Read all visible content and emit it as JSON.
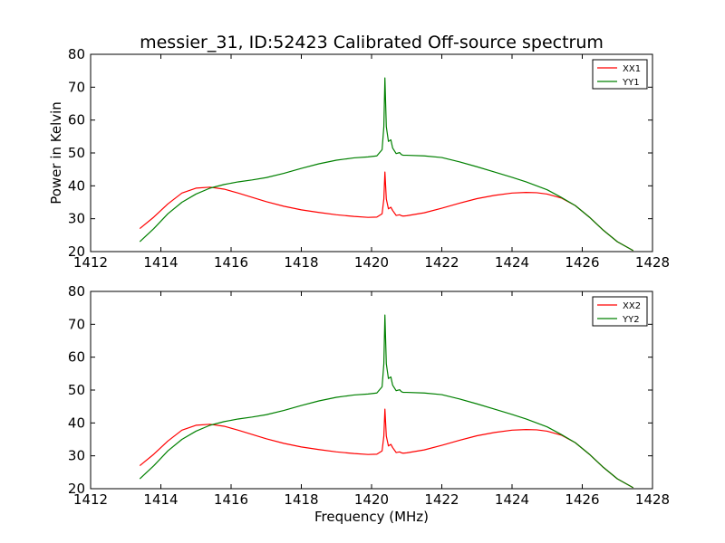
{
  "figure": {
    "title": "messier_31, ID:52423 Calibrated Off-source spectrum",
    "xlabel": "Frequency (MHz)",
    "ylabel": "Power in Kelvin"
  },
  "chart_data": [
    {
      "type": "line",
      "title": "messier_31, ID:52423 Calibrated Off-source spectrum",
      "xlabel": "",
      "ylabel": "Power in Kelvin",
      "xlim": [
        1412,
        1428
      ],
      "ylim": [
        20,
        80
      ],
      "xticks": [
        1412,
        1414,
        1416,
        1418,
        1420,
        1422,
        1424,
        1426,
        1428
      ],
      "yticks": [
        20,
        30,
        40,
        50,
        60,
        70,
        80
      ],
      "grid": false,
      "legend": "top-right",
      "series": [
        {
          "name": "XX1",
          "color": "#ff0000",
          "x": [
            1413.4,
            1413.8,
            1414.2,
            1414.6,
            1415.0,
            1415.4,
            1415.8,
            1416.2,
            1416.6,
            1417.0,
            1417.5,
            1418.0,
            1418.5,
            1419.0,
            1419.5,
            1419.9,
            1420.15,
            1420.3,
            1420.35,
            1420.38,
            1420.42,
            1420.48,
            1420.55,
            1420.6,
            1420.7,
            1420.8,
            1420.85,
            1420.9,
            1421.0,
            1421.5,
            1422.0,
            1422.5,
            1423.0,
            1423.5,
            1424.0,
            1424.4,
            1424.7,
            1425.0,
            1425.4,
            1425.8,
            1426.2,
            1426.6,
            1427.0,
            1427.45
          ],
          "y": [
            27.0,
            30.5,
            34.5,
            37.8,
            39.3,
            39.6,
            39.0,
            37.8,
            36.5,
            35.2,
            33.8,
            32.7,
            31.9,
            31.2,
            30.7,
            30.4,
            30.5,
            31.5,
            36.0,
            44.2,
            36.0,
            33.0,
            33.5,
            32.5,
            31.0,
            31.2,
            30.9,
            30.8,
            30.9,
            31.8,
            33.2,
            34.7,
            36.1,
            37.1,
            37.8,
            38.0,
            37.9,
            37.5,
            36.3,
            34.0,
            30.5,
            26.5,
            23.0,
            20.3
          ]
        },
        {
          "name": "YY1",
          "color": "#008000",
          "x": [
            1413.4,
            1413.8,
            1414.2,
            1414.6,
            1415.0,
            1415.4,
            1415.8,
            1416.2,
            1416.6,
            1417.0,
            1417.5,
            1418.0,
            1418.5,
            1419.0,
            1419.5,
            1419.9,
            1420.15,
            1420.3,
            1420.35,
            1420.38,
            1420.42,
            1420.48,
            1420.55,
            1420.6,
            1420.7,
            1420.8,
            1420.85,
            1420.9,
            1421.0,
            1421.5,
            1422.0,
            1422.5,
            1423.0,
            1423.5,
            1424.0,
            1424.4,
            1424.7,
            1425.0,
            1425.4,
            1425.8,
            1426.2,
            1426.6,
            1427.0,
            1427.45
          ],
          "y": [
            23.0,
            27.0,
            31.5,
            35.0,
            37.5,
            39.3,
            40.4,
            41.2,
            41.8,
            42.5,
            43.8,
            45.3,
            46.7,
            47.8,
            48.5,
            48.8,
            49.1,
            51.0,
            58.0,
            72.8,
            58.0,
            53.5,
            54.0,
            51.5,
            49.8,
            50.1,
            49.5,
            49.3,
            49.3,
            49.1,
            48.6,
            47.3,
            45.8,
            44.2,
            42.6,
            41.2,
            40.0,
            38.8,
            36.5,
            34.0,
            30.5,
            26.5,
            23.0,
            20.3
          ]
        }
      ]
    },
    {
      "type": "line",
      "title": "",
      "xlabel": "Frequency (MHz)",
      "ylabel": "",
      "xlim": [
        1412,
        1428
      ],
      "ylim": [
        20,
        80
      ],
      "xticks": [
        1412,
        1414,
        1416,
        1418,
        1420,
        1422,
        1424,
        1426,
        1428
      ],
      "yticks": [
        20,
        30,
        40,
        50,
        60,
        70,
        80
      ],
      "grid": false,
      "legend": "top-right",
      "series": [
        {
          "name": "XX2",
          "color": "#ff0000",
          "x": [
            1413.4,
            1413.8,
            1414.2,
            1414.6,
            1415.0,
            1415.4,
            1415.8,
            1416.2,
            1416.6,
            1417.0,
            1417.5,
            1418.0,
            1418.5,
            1419.0,
            1419.5,
            1419.9,
            1420.15,
            1420.3,
            1420.35,
            1420.38,
            1420.42,
            1420.48,
            1420.55,
            1420.6,
            1420.7,
            1420.8,
            1420.85,
            1420.9,
            1421.0,
            1421.5,
            1422.0,
            1422.5,
            1423.0,
            1423.5,
            1424.0,
            1424.4,
            1424.7,
            1425.0,
            1425.4,
            1425.8,
            1426.2,
            1426.6,
            1427.0,
            1427.45
          ],
          "y": [
            27.0,
            30.5,
            34.5,
            37.8,
            39.3,
            39.6,
            39.0,
            37.8,
            36.5,
            35.2,
            33.8,
            32.7,
            31.9,
            31.2,
            30.7,
            30.4,
            30.5,
            31.5,
            36.0,
            44.2,
            36.0,
            33.0,
            33.5,
            32.5,
            31.0,
            31.2,
            30.9,
            30.8,
            30.9,
            31.8,
            33.2,
            34.7,
            36.1,
            37.1,
            37.8,
            38.0,
            37.9,
            37.5,
            36.3,
            34.0,
            30.5,
            26.5,
            23.0,
            20.3
          ]
        },
        {
          "name": "YY2",
          "color": "#008000",
          "x": [
            1413.4,
            1413.8,
            1414.2,
            1414.6,
            1415.0,
            1415.4,
            1415.8,
            1416.2,
            1416.6,
            1417.0,
            1417.5,
            1418.0,
            1418.5,
            1419.0,
            1419.5,
            1419.9,
            1420.15,
            1420.3,
            1420.35,
            1420.38,
            1420.42,
            1420.48,
            1420.55,
            1420.6,
            1420.7,
            1420.8,
            1420.85,
            1420.9,
            1421.0,
            1421.5,
            1422.0,
            1422.5,
            1423.0,
            1423.5,
            1424.0,
            1424.4,
            1424.7,
            1425.0,
            1425.4,
            1425.8,
            1426.2,
            1426.6,
            1427.0,
            1427.45
          ],
          "y": [
            23.0,
            27.0,
            31.5,
            35.0,
            37.5,
            39.3,
            40.4,
            41.2,
            41.8,
            42.5,
            43.8,
            45.3,
            46.7,
            47.8,
            48.5,
            48.8,
            49.1,
            51.0,
            58.0,
            72.8,
            58.0,
            53.5,
            54.0,
            51.5,
            49.8,
            50.1,
            49.5,
            49.3,
            49.3,
            49.1,
            48.6,
            47.3,
            45.8,
            44.2,
            42.6,
            41.2,
            40.0,
            38.8,
            36.5,
            34.0,
            30.5,
            26.5,
            23.0,
            20.3
          ]
        }
      ]
    }
  ]
}
